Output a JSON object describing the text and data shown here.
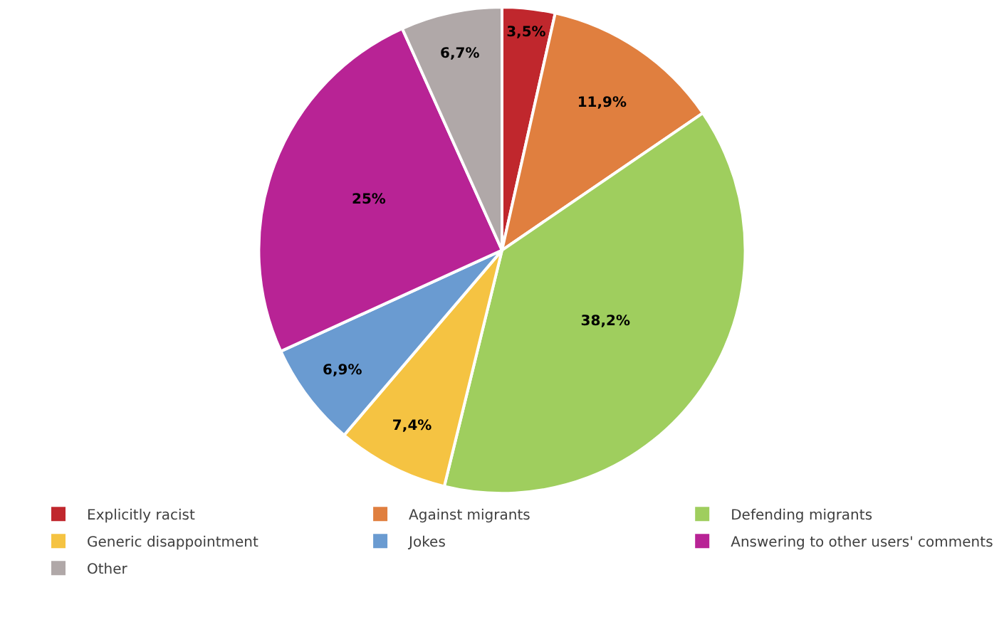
{
  "chart_data": {
    "type": "pie",
    "categories": [
      "Explicitly racist",
      "Against migrants",
      "Defending migrants",
      "Generic disappointment",
      "Jokes",
      "Answering to other users' comments",
      "Other"
    ],
    "values": [
      3.5,
      11.9,
      38.2,
      7.4,
      6.9,
      25,
      6.7
    ],
    "colors": [
      "#c0272d",
      "#e07f3f",
      "#9fce5e",
      "#f5c342",
      "#6a9bd1",
      "#b82395",
      "#b0a8a8"
    ],
    "value_labels": [
      "3,5%",
      "11,9%",
      "38,2%",
      "7,4%",
      "6,9%",
      "25%",
      "6,7%"
    ],
    "legend": "bottom"
  }
}
